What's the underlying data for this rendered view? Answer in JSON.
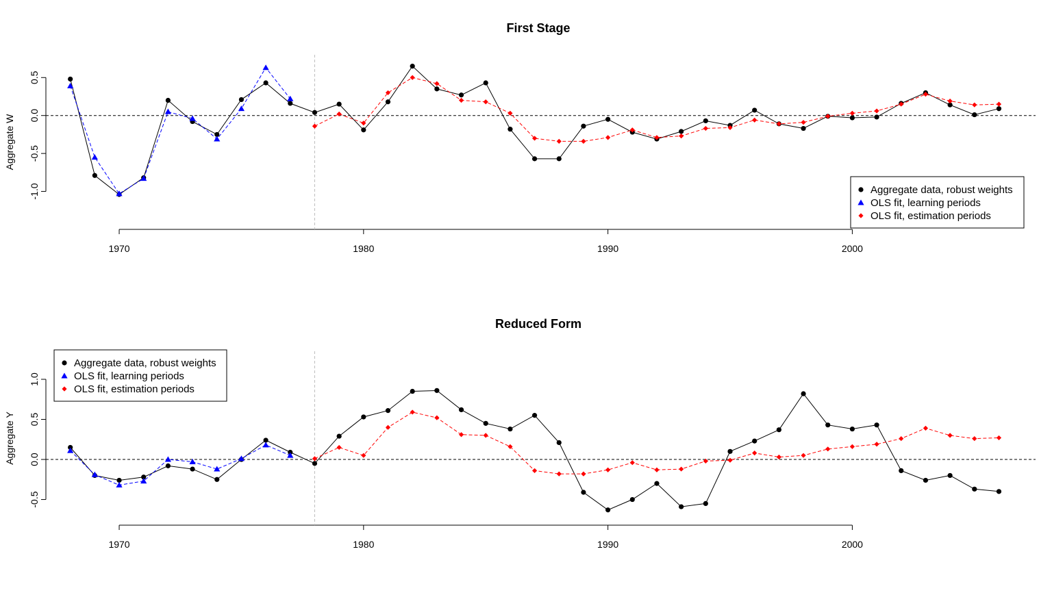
{
  "chart_data": [
    {
      "type": "line",
      "title": "First Stage",
      "xlabel": "",
      "ylabel": "Aggregate W",
      "xlim": [
        1967.0,
        2007.5
      ],
      "ylim": [
        -1.5,
        0.8
      ],
      "xticks": [
        1970,
        1980,
        1990,
        2000
      ],
      "yticks": [
        -1.0,
        -0.5,
        0.0,
        0.5
      ],
      "xtick_labels": [
        "1970",
        "1980",
        "1990",
        "2000"
      ],
      "ytick_labels": [
        "-1.0",
        "-0.5",
        "0.0",
        "0.5"
      ],
      "reference_line_y": 0,
      "reference_line_x": 1978,
      "legend_position": "bottom-right",
      "series": [
        {
          "name": "Aggregate data, robust weights",
          "color": "#000000",
          "marker": "circle",
          "line": "solid",
          "x": [
            1968,
            1969,
            1970,
            1971,
            1972,
            1973,
            1974,
            1975,
            1976,
            1977,
            1978,
            1979,
            1980,
            1981,
            1982,
            1983,
            1984,
            1985,
            1986,
            1987,
            1988,
            1989,
            1990,
            1991,
            1992,
            1993,
            1994,
            1995,
            1996,
            1997,
            1998,
            1999,
            2000,
            2001,
            2002,
            2003,
            2004,
            2005,
            2006
          ],
          "y": [
            0.48,
            -0.79,
            -1.04,
            -0.82,
            0.2,
            -0.08,
            -0.25,
            0.21,
            0.43,
            0.16,
            0.04,
            0.15,
            -0.19,
            0.18,
            0.65,
            0.35,
            0.27,
            0.43,
            -0.18,
            -0.57,
            -0.57,
            -0.14,
            -0.05,
            -0.22,
            -0.31,
            -0.21,
            -0.07,
            -0.13,
            0.07,
            -0.11,
            -0.17,
            -0.01,
            -0.03,
            -0.02,
            0.16,
            0.3,
            0.14,
            0.01,
            0.09
          ]
        },
        {
          "name": "OLS fit, learning periods",
          "color": "#0000ff",
          "marker": "triangle",
          "line": "dashed",
          "x": [
            1968,
            1969,
            1970,
            1971,
            1972,
            1973,
            1974,
            1975,
            1976,
            1977
          ],
          "y": [
            0.39,
            -0.55,
            -1.03,
            -0.83,
            0.05,
            -0.04,
            -0.31,
            0.09,
            0.63,
            0.22
          ]
        },
        {
          "name": "OLS fit, estimation periods",
          "color": "#ff0000",
          "marker": "diamond",
          "line": "dashed",
          "x": [
            1978,
            1979,
            1980,
            1981,
            1982,
            1983,
            1984,
            1985,
            1986,
            1987,
            1988,
            1989,
            1990,
            1991,
            1992,
            1993,
            1994,
            1995,
            1996,
            1997,
            1998,
            1999,
            2000,
            2001,
            2002,
            2003,
            2004,
            2005,
            2006
          ],
          "y": [
            -0.14,
            0.02,
            -0.1,
            0.3,
            0.5,
            0.42,
            0.2,
            0.18,
            0.03,
            -0.3,
            -0.34,
            -0.34,
            -0.29,
            -0.19,
            -0.29,
            -0.27,
            -0.17,
            -0.16,
            -0.06,
            -0.11,
            -0.09,
            -0.01,
            0.03,
            0.06,
            0.15,
            0.28,
            0.19,
            0.14,
            0.15
          ]
        }
      ]
    },
    {
      "type": "line",
      "title": "Reduced Form",
      "xlabel": "",
      "ylabel": "Aggregate Y",
      "xlim": [
        1967.0,
        2007.5
      ],
      "ylim": [
        -0.82,
        1.35
      ],
      "xticks": [
        1970,
        1980,
        1990,
        2000
      ],
      "yticks": [
        -0.5,
        0.0,
        0.5,
        1.0
      ],
      "xtick_labels": [
        "1970",
        "1980",
        "1990",
        "2000"
      ],
      "ytick_labels": [
        "-0.5",
        "0.0",
        "0.5",
        "1.0"
      ],
      "reference_line_y": 0,
      "reference_line_x": 1978,
      "legend_position": "top-left",
      "series": [
        {
          "name": "Aggregate data, robust weights",
          "color": "#000000",
          "marker": "circle",
          "line": "solid",
          "x": [
            1968,
            1969,
            1970,
            1971,
            1972,
            1973,
            1974,
            1975,
            1976,
            1977,
            1978,
            1979,
            1980,
            1981,
            1982,
            1983,
            1984,
            1985,
            1986,
            1987,
            1988,
            1989,
            1990,
            1991,
            1992,
            1993,
            1994,
            1995,
            1996,
            1997,
            1998,
            1999,
            2000,
            2001,
            2002,
            2003,
            2004,
            2005,
            2006
          ],
          "y": [
            0.15,
            -0.2,
            -0.26,
            -0.22,
            -0.08,
            -0.12,
            -0.25,
            0.0,
            0.24,
            0.09,
            -0.05,
            0.29,
            0.53,
            0.61,
            0.85,
            0.86,
            0.62,
            0.45,
            0.38,
            0.55,
            0.21,
            -0.41,
            -0.63,
            -0.5,
            -0.3,
            -0.59,
            -0.55,
            0.1,
            0.23,
            0.37,
            0.82,
            0.43,
            0.38,
            0.43,
            -0.14,
            -0.26,
            -0.2,
            -0.37,
            -0.4
          ]
        },
        {
          "name": "OLS fit, learning periods",
          "color": "#0000ff",
          "marker": "triangle",
          "line": "dashed",
          "x": [
            1968,
            1969,
            1970,
            1971,
            1972,
            1973,
            1974,
            1975,
            1976,
            1977
          ],
          "y": [
            0.11,
            -0.19,
            -0.32,
            -0.27,
            0.0,
            -0.03,
            -0.12,
            0.01,
            0.18,
            0.05
          ]
        },
        {
          "name": "OLS fit, estimation periods",
          "color": "#ff0000",
          "marker": "diamond",
          "line": "dashed",
          "x": [
            1978,
            1979,
            1980,
            1981,
            1982,
            1983,
            1984,
            1985,
            1986,
            1987,
            1988,
            1989,
            1990,
            1991,
            1992,
            1993,
            1994,
            1995,
            1996,
            1997,
            1998,
            1999,
            2000,
            2001,
            2002,
            2003,
            2004,
            2005,
            2006
          ],
          "y": [
            0.01,
            0.15,
            0.05,
            0.4,
            0.59,
            0.52,
            0.31,
            0.3,
            0.16,
            -0.14,
            -0.18,
            -0.18,
            -0.13,
            -0.04,
            -0.13,
            -0.12,
            -0.02,
            -0.01,
            0.08,
            0.03,
            0.05,
            0.13,
            0.16,
            0.19,
            0.26,
            0.39,
            0.3,
            0.26,
            0.27
          ]
        }
      ]
    }
  ]
}
